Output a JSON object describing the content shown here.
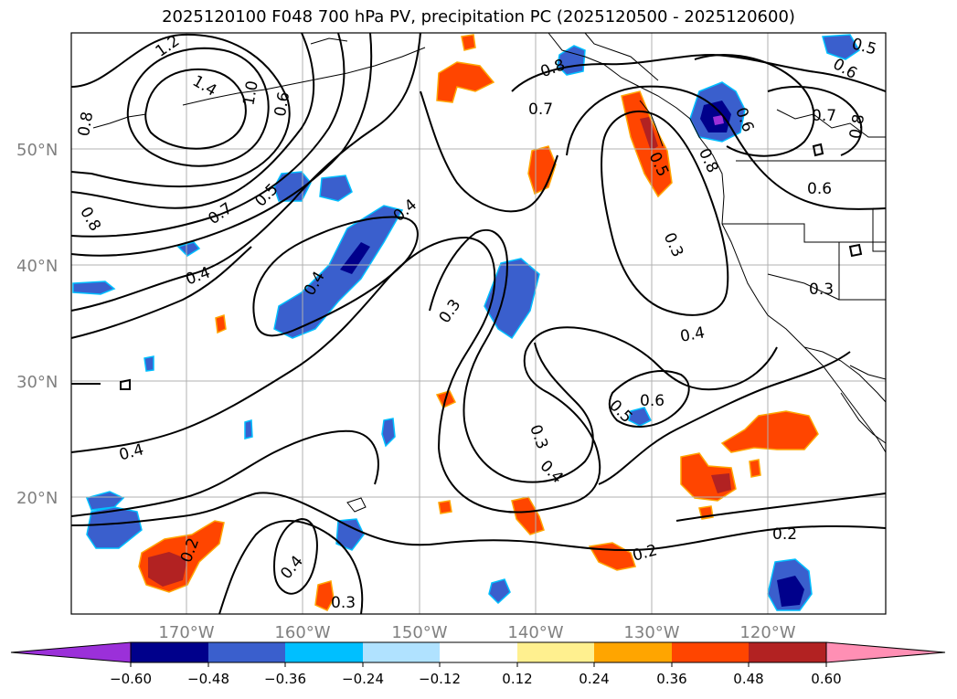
{
  "title": "2025120100 F048 700 hPa PV, precipitation PC (2025120500 - 2025120600)",
  "lat_labels": [
    "50°N",
    "40°N",
    "30°N",
    "20°N"
  ],
  "lon_labels": [
    "170°W",
    "160°W",
    "150°W",
    "140°W",
    "130°W",
    "120°W"
  ],
  "contour_labels": [
    "1.2",
    "1.4",
    "1.0",
    "0.6",
    "0.8",
    "0.7",
    "0.5",
    "0.8",
    "0.4",
    "0.4",
    "0.4",
    "0.3",
    "0.7",
    "0.8",
    "0.5",
    "0.8",
    "0.6",
    "0.7",
    "0.6",
    "0.8",
    "0.5",
    "0.6",
    "0.3",
    "0.3",
    "0.4",
    "0.6",
    "0.5",
    "0.3",
    "0.4",
    "0.4",
    "0.2",
    "0.4",
    "0.3",
    "0.2",
    "0.2"
  ],
  "colorbar": {
    "tick_labels": [
      "−0.60",
      "−0.48",
      "−0.36",
      "−0.24",
      "−0.12",
      "0.12",
      "0.24",
      "0.36",
      "0.48",
      "0.60"
    ],
    "colors": [
      "#9b30d9",
      "#00008b",
      "#3a5fcd",
      "#00bfff",
      "#b0e2ff",
      "#ffffff",
      "#fff08f",
      "#ffa500",
      "#ff4500",
      "#b22222",
      "#ff8fb4"
    ]
  },
  "colors": {
    "contour": "#000000",
    "coast": "#000000",
    "grid": "#b0b0b0"
  }
}
